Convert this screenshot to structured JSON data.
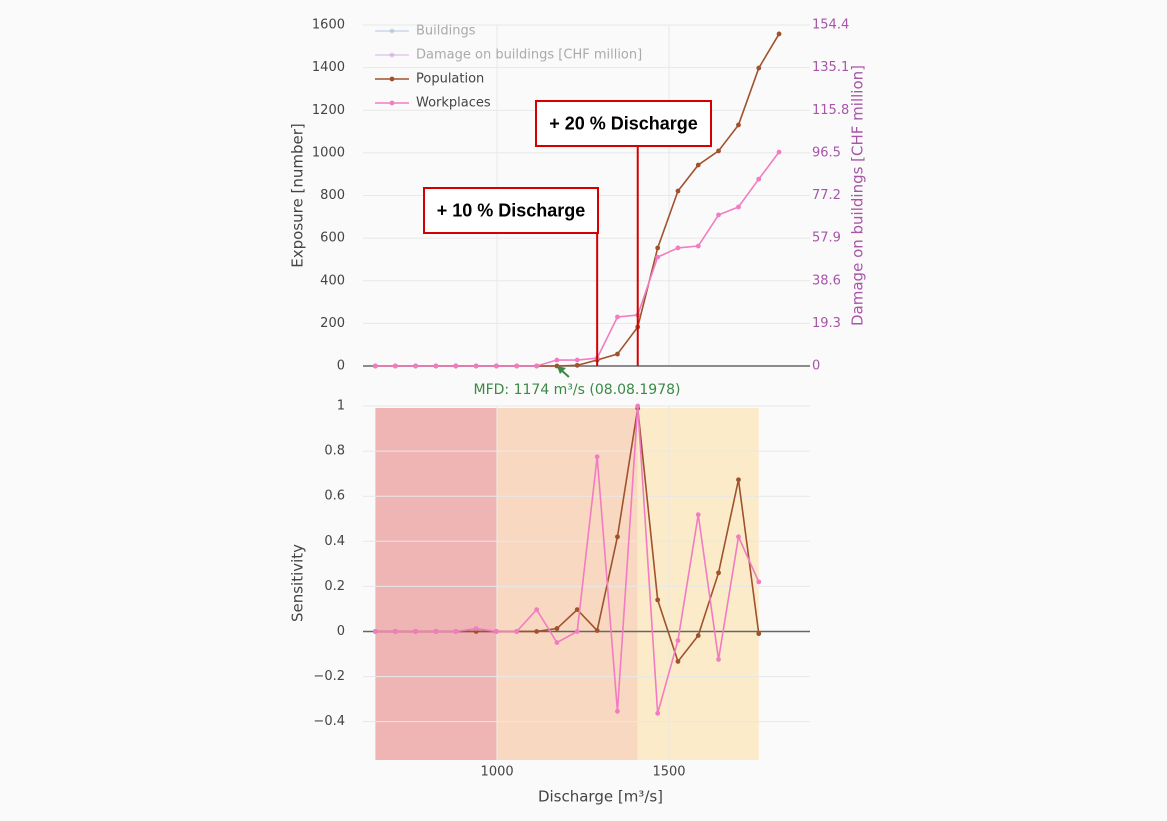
{
  "chart_data": [
    {
      "type": "line",
      "y_label": "Exposure [number]",
      "y2_label": "Damage on buildings [CHF million]",
      "x": [
        646,
        704,
        763,
        822,
        880,
        939,
        998,
        1057,
        1115,
        1174,
        1233,
        1291,
        1350,
        1409,
        1467,
        1526,
        1585,
        1644,
        1702,
        1761,
        1820
      ],
      "xlim": [
        610,
        1910
      ],
      "xticks": [
        1000,
        1500
      ],
      "show_xtick_labels": false,
      "ylim": [
        0,
        1600
      ],
      "yticks": [
        0,
        200,
        400,
        600,
        800,
        1000,
        1200,
        1400,
        1600
      ],
      "y2lim": [
        0,
        154.4
      ],
      "y2ticks": [
        0,
        19.3,
        38.6,
        57.9,
        77.2,
        96.5,
        115.8,
        135.1,
        154.4
      ],
      "y2color": "#a855a8",
      "grid": true,
      "legend": "upper left",
      "series": [
        {
          "name": "Buildings",
          "color": "#9bb8d8",
          "visible": false
        },
        {
          "name": "Damage on buildings [CHF million]",
          "color": "#cc99d6",
          "visible": false,
          "axis": "y2"
        },
        {
          "name": "Population",
          "color": "#a0522d",
          "visible": true,
          "values": [
            0,
            0,
            0,
            0,
            0,
            0,
            0,
            0,
            0,
            0,
            3,
            28,
            56,
            183,
            554,
            821,
            943,
            1009,
            1131,
            1398,
            1558
          ]
        },
        {
          "name": "Workplaces",
          "color": "#f27cc1",
          "visible": true,
          "values": [
            0,
            0,
            0,
            0,
            0,
            0,
            0,
            0,
            0,
            28,
            28,
            37,
            230,
            239,
            511,
            554,
            563,
            709,
            746,
            877,
            1004
          ]
        }
      ],
      "annotations": [
        {
          "text": "+ 10 % Discharge",
          "x": 1291,
          "y": 624
        },
        {
          "text": "+ 20 % Discharge",
          "x": 1409,
          "y": 1032
        }
      ],
      "marker": {
        "text": "MFD: 1174 m³/s (08.08.1978)",
        "x": 1174,
        "y": 0,
        "color": "#3a8a45"
      }
    },
    {
      "type": "line",
      "x_label": "Discharge [m³/s]",
      "y_label": "Sensitivity",
      "x": [
        646,
        704,
        763,
        822,
        880,
        939,
        998,
        1057,
        1115,
        1174,
        1233,
        1291,
        1350,
        1409,
        1467,
        1526,
        1585,
        1644,
        1702,
        1761
      ],
      "xlim": [
        610,
        1910
      ],
      "xticks": [
        1000,
        1500
      ],
      "show_xtick_labels": true,
      "ylim": [
        -0.57,
        1
      ],
      "yticks": [
        {
          "value": -0.4,
          "label": "−0.4"
        },
        {
          "value": -0.2,
          "label": "−0.2"
        },
        0,
        0.2,
        0.4,
        0.6,
        0.8,
        1
      ],
      "grid": true,
      "regions": [
        {
          "x0": 646,
          "x1": 998,
          "color": "#efb5b5"
        },
        {
          "x0": 998,
          "x1": 1409,
          "color": "#f9d8c1"
        },
        {
          "x0": 1409,
          "x1": 1761,
          "color": "#fbebc9"
        }
      ],
      "series": [
        {
          "color": "#a0522d",
          "values": [
            0,
            0,
            0,
            0,
            0,
            0,
            0,
            0,
            0,
            0.013,
            0.097,
            0.004,
            0.42,
            0.99,
            0.14,
            -0.133,
            -0.018,
            0.26,
            0.673,
            -0.01
          ]
        },
        {
          "color": "#f27cc1",
          "values": [
            0,
            0,
            0,
            0,
            0,
            0.013,
            0,
            0,
            0.097,
            -0.049,
            0,
            0.775,
            -0.354,
            1.0,
            -0.363,
            -0.04,
            0.518,
            -0.124,
            0.42,
            0.22
          ]
        }
      ]
    }
  ]
}
